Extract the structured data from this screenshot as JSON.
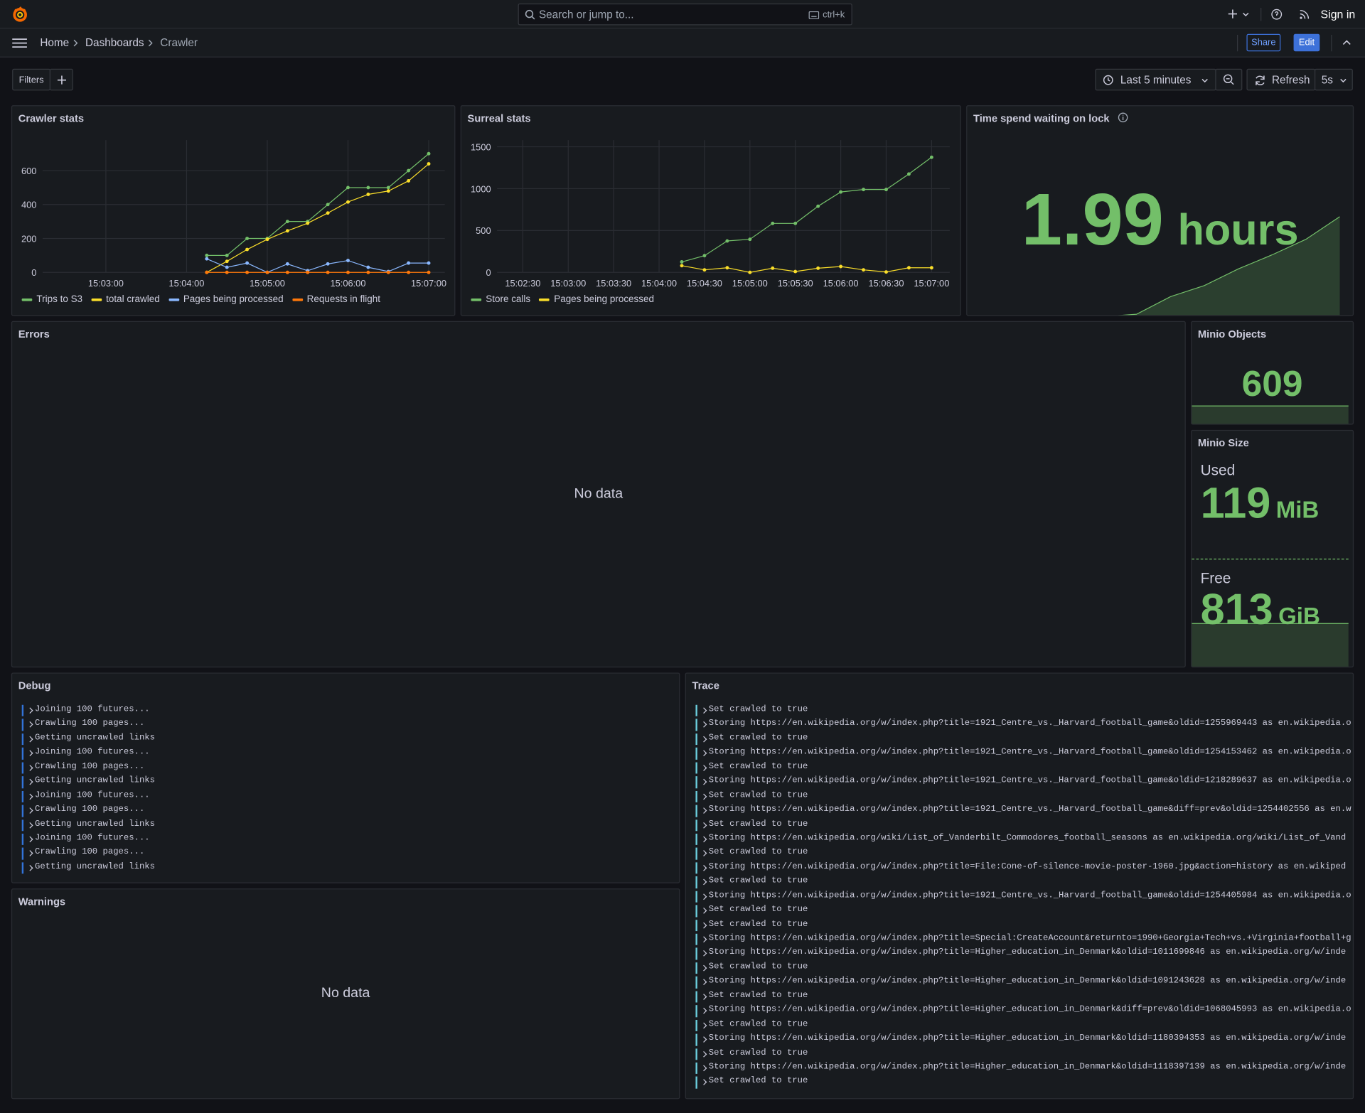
{
  "header": {
    "search_placeholder": "Search or jump to...",
    "search_shortcut": "ctrl+k",
    "sign_in": "Sign in"
  },
  "nav": {
    "breadcrumbs": [
      "Home",
      "Dashboards",
      "Crawler"
    ],
    "share": "Share",
    "edit": "Edit"
  },
  "toolbar": {
    "filters": "Filters",
    "time_range": "Last 5 minutes",
    "refresh": "Refresh",
    "refresh_interval": "5s"
  },
  "chart_data": [
    {
      "type": "line",
      "title": "Crawler stats",
      "x": [
        "15:04:15",
        "15:04:30",
        "15:04:45",
        "15:05:00",
        "15:05:15",
        "15:05:30",
        "15:05:45",
        "15:06:00",
        "15:06:15",
        "15:06:30",
        "15:06:45",
        "15:07:00"
      ],
      "xlim": [
        "15:02:13",
        "15:07:12"
      ],
      "xticks": [
        "15:03:00",
        "15:04:00",
        "15:05:00",
        "15:06:00",
        "15:07:00"
      ],
      "ylim": [
        0,
        780
      ],
      "yticks": [
        0,
        200,
        400,
        600
      ],
      "grid": true,
      "series": [
        {
          "name": "Trips to S3",
          "color": "#73bf69",
          "values": [
            100,
            100,
            200,
            200,
            300,
            300,
            400,
            500,
            500,
            500,
            600,
            700
          ]
        },
        {
          "name": "total crawled",
          "color": "#fade2a",
          "values": [
            0,
            65,
            135,
            195,
            245,
            290,
            350,
            415,
            460,
            480,
            540,
            640
          ]
        },
        {
          "name": "Pages being processed",
          "color": "#8ab8ff",
          "values": [
            80,
            30,
            55,
            0,
            50,
            10,
            50,
            70,
            30,
            5,
            55,
            55
          ]
        },
        {
          "name": "Requests in flight",
          "color": "#ff780a",
          "values": [
            0,
            0,
            0,
            0,
            0,
            0,
            0,
            0,
            0,
            0,
            0,
            0
          ]
        }
      ]
    },
    {
      "type": "line",
      "title": "Surreal stats",
      "x": [
        "15:04:15",
        "15:04:30",
        "15:04:45",
        "15:05:00",
        "15:05:15",
        "15:05:30",
        "15:05:45",
        "15:06:00",
        "15:06:15",
        "15:06:30",
        "15:06:45",
        "15:07:00"
      ],
      "xlim": [
        "15:02:13",
        "15:07:12"
      ],
      "xticks": [
        "15:02:30",
        "15:03:00",
        "15:03:30",
        "15:04:00",
        "15:04:30",
        "15:05:00",
        "15:05:30",
        "15:06:00",
        "15:06:30",
        "15:07:00"
      ],
      "ylim": [
        0,
        1580
      ],
      "yticks": [
        0,
        500,
        1000,
        1500
      ],
      "grid": true,
      "series": [
        {
          "name": "Store calls",
          "color": "#73bf69",
          "values": [
            125,
            200,
            375,
            395,
            585,
            585,
            790,
            960,
            990,
            990,
            1175,
            1375
          ]
        },
        {
          "name": "Pages being processed",
          "color": "#fade2a",
          "values": [
            80,
            30,
            55,
            0,
            50,
            10,
            50,
            70,
            30,
            5,
            55,
            55
          ]
        }
      ]
    }
  ],
  "stats": {
    "lock": {
      "title": "Time spend waiting on lock",
      "value": 1.99,
      "unit": "hours",
      "color": "#73bf69",
      "sparkline": [
        0,
        0,
        0,
        0,
        0,
        0.05,
        0.4,
        0.62,
        0.95,
        1.23,
        1.54,
        1.99
      ]
    },
    "minio_objects": {
      "title": "Minio Objects",
      "value": 609,
      "color": "#73bf69"
    },
    "minio_size": {
      "title": "Minio Size",
      "color": "#73bf69",
      "items": [
        {
          "label": "Used",
          "value": 119,
          "unit": "MiB"
        },
        {
          "label": "Free",
          "value": 813,
          "unit": "GiB"
        }
      ]
    }
  },
  "errors": {
    "title": "Errors",
    "message": "No data"
  },
  "warnings": {
    "title": "Warnings",
    "message": "No data"
  },
  "debug": {
    "title": "Debug",
    "lines": [
      "Joining 100 futures...",
      "Crawling 100 pages...",
      "Getting uncrawled links",
      "Joining 100 futures...",
      "Crawling 100 pages...",
      "Getting uncrawled links",
      "Joining 100 futures...",
      "Crawling 100 pages...",
      "Getting uncrawled links",
      "Joining 100 futures...",
      "Crawling 100 pages...",
      "Getting uncrawled links"
    ]
  },
  "trace": {
    "title": "Trace",
    "lines": [
      "Set crawled to true",
      "Storing https://en.wikipedia.org/w/index.php?title=1921_Centre_vs._Harvard_football_game&oldid=1255969443 as en.wikipedia.o",
      "Set crawled to true",
      "Storing https://en.wikipedia.org/w/index.php?title=1921_Centre_vs._Harvard_football_game&oldid=1254153462 as en.wikipedia.o",
      "Set crawled to true",
      "Storing https://en.wikipedia.org/w/index.php?title=1921_Centre_vs._Harvard_football_game&oldid=1218289637 as en.wikipedia.o",
      "Set crawled to true",
      "Storing https://en.wikipedia.org/w/index.php?title=1921_Centre_vs._Harvard_football_game&diff=prev&oldid=1254402556 as en.w",
      "Set crawled to true",
      "Storing https://en.wikipedia.org/wiki/List_of_Vanderbilt_Commodores_football_seasons as en.wikipedia.org/wiki/List_of_Vand",
      "Set crawled to true",
      "Storing https://en.wikipedia.org/w/index.php?title=File:Cone-of-silence-movie-poster-1960.jpg&action=history as en.wikiped",
      "Set crawled to true",
      "Storing https://en.wikipedia.org/w/index.php?title=1921_Centre_vs._Harvard_football_game&oldid=1254405984 as en.wikipedia.o",
      "Set crawled to true",
      "Set crawled to true",
      "Storing https://en.wikipedia.org/w/index.php?title=Special:CreateAccount&returnto=1990+Georgia+Tech+vs.+Virginia+football+g",
      "Storing https://en.wikipedia.org/w/index.php?title=Higher_education_in_Denmark&oldid=1011699846 as en.wikipedia.org/w/inde",
      "Set crawled to true",
      "Storing https://en.wikipedia.org/w/index.php?title=Higher_education_in_Denmark&oldid=1091243628 as en.wikipedia.org/w/inde",
      "Set crawled to true",
      "Storing https://en.wikipedia.org/w/index.php?title=Higher_education_in_Denmark&diff=prev&oldid=1068045993 as en.wikipedia.o",
      "Set crawled to true",
      "Storing https://en.wikipedia.org/w/index.php?title=Higher_education_in_Denmark&oldid=1180394353 as en.wikipedia.org/w/inde",
      "Set crawled to true",
      "Storing https://en.wikipedia.org/w/index.php?title=Higher_education_in_Denmark&oldid=1118397139 as en.wikipedia.org/w/inde",
      "Set crawled to true"
    ]
  }
}
